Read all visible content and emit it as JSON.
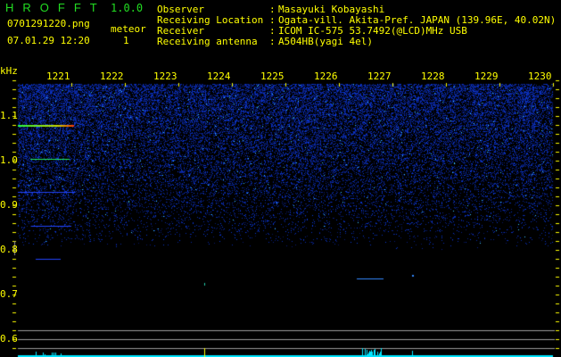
{
  "header": {
    "app_title": "HROFFT",
    "version": "1.0.0",
    "file_name": "0701291220.png",
    "date_time": "07.01.29 12:20",
    "meteor_label": "meteor",
    "meteor_count": "1"
  },
  "info": [
    {
      "key": "Observer",
      "value": "Masayuki Kobayashi"
    },
    {
      "key": "Receiving Location",
      "value": "Ogata-vill. Akita-Pref. JAPAN (139.96E, 40.02N)"
    },
    {
      "key": "Receiver",
      "value": "ICOM IC-575 53.7492(@LCD)MHz USB"
    },
    {
      "key": "Receiving antenna",
      "value": "A504HB(yagi 4el)"
    }
  ],
  "spectrogram": {
    "y_unit": "kHz",
    "y_ticks": [
      "1.1",
      "1.0",
      "0.9",
      "0.8",
      "0.7",
      "0.6"
    ],
    "time_ticks": [
      "1221",
      "1222",
      "1223",
      "1224",
      "1225",
      "1226",
      "1227",
      "1228",
      "1229",
      "1230"
    ],
    "colors": {
      "text": "#ffff00",
      "title": "#22dd22",
      "noise": "#1a2aff",
      "histogram": "#00e5ff",
      "guide": "#9a9a9a"
    }
  }
}
